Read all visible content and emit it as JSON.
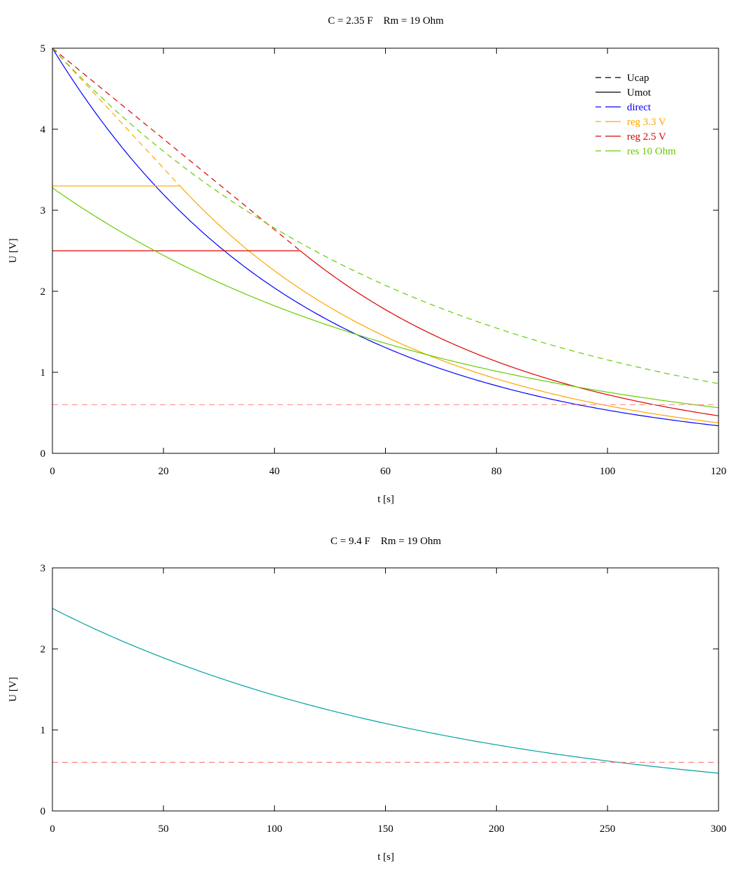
{
  "chart_data": [
    {
      "type": "line",
      "title": "C = 2.35 F    Rm = 19 Ohm",
      "xlabel": "t [s]",
      "ylabel": "U [V]",
      "xlim": [
        0,
        120
      ],
      "ylim": [
        0,
        5
      ],
      "xticks": [
        "0",
        "20",
        "40",
        "60",
        "80",
        "100",
        "120"
      ],
      "yticks": [
        "0",
        "1",
        "2",
        "3",
        "4",
        "5"
      ],
      "grid": false,
      "legend_position": "top-right",
      "legend": [
        {
          "label": "Ucap",
          "color": "#000000"
        },
        {
          "label": "Umot",
          "color": "#000000"
        },
        {
          "label": "direct",
          "color": "#0000ff"
        },
        {
          "label": "reg 3.3 V",
          "color": "#ffa500"
        },
        {
          "label": "reg 2.5 V",
          "color": "#dd0000"
        },
        {
          "label": "res 10 Ohm",
          "color": "#66cc00"
        }
      ],
      "series": [
        {
          "name": "direct Umot",
          "color": "#0000ff",
          "dash": false,
          "interp": "exp",
          "x": [
            0,
            10,
            20,
            30,
            40,
            50,
            60,
            70,
            80,
            90,
            100,
            110,
            120
          ],
          "y": [
            5.0,
            3.997,
            3.195,
            2.554,
            2.041,
            1.632,
            1.305,
            1.043,
            0.834,
            0.666,
            0.533,
            0.426,
            0.34
          ]
        },
        {
          "name": "reg 3.3 V Ucap",
          "color": "#ffa500",
          "dash": true,
          "interp": "linear",
          "x": [
            0,
            22.96
          ],
          "y": [
            5.0,
            3.3
          ]
        },
        {
          "name": "reg 3.3 V Umot",
          "color": "#ffa500",
          "dash": false,
          "interp": "exp",
          "x": [
            0,
            22.96,
            30,
            40,
            50,
            60,
            70,
            80,
            90,
            100,
            110,
            120
          ],
          "y": [
            3.3,
            3.3,
            2.819,
            2.253,
            1.801,
            1.44,
            1.151,
            0.92,
            0.735,
            0.588,
            0.47,
            0.376
          ]
        },
        {
          "name": "reg 2.5 V Ucap",
          "color": "#dd0000",
          "dash": true,
          "interp": "linear",
          "x": [
            0,
            44.65
          ],
          "y": [
            5.0,
            2.5
          ]
        },
        {
          "name": "reg 2.5 V Umot",
          "color": "#dd0000",
          "dash": false,
          "interp": "exp",
          "x": [
            0,
            44.65,
            50,
            60,
            70,
            80,
            90,
            100,
            110,
            120
          ],
          "y": [
            2.5,
            2.5,
            2.218,
            1.773,
            1.417,
            1.133,
            0.906,
            0.724,
            0.579,
            0.463
          ]
        },
        {
          "name": "res 10 Ohm Ucap",
          "color": "#66cc00",
          "dash": true,
          "interp": "exp",
          "x": [
            0,
            10,
            20,
            30,
            40,
            50,
            60,
            70,
            80,
            90,
            100,
            110,
            120
          ],
          "y": [
            5.0,
            4.318,
            3.728,
            3.219,
            2.78,
            2.401,
            2.073,
            1.79,
            1.546,
            1.335,
            1.153,
            0.995,
            0.86
          ]
        },
        {
          "name": "res 10 Ohm Umot",
          "color": "#66cc00",
          "dash": false,
          "interp": "exp",
          "x": [
            0,
            10,
            20,
            30,
            40,
            50,
            60,
            70,
            80,
            90,
            100,
            110,
            120
          ],
          "y": [
            3.276,
            2.829,
            2.443,
            2.109,
            1.821,
            1.573,
            1.358,
            1.173,
            1.013,
            0.875,
            0.755,
            0.652,
            0.563
          ]
        },
        {
          "name": "threshold",
          "color": "#ff9999",
          "dash": true,
          "interp": "linear",
          "x": [
            0,
            120
          ],
          "y": [
            0.6,
            0.6
          ]
        }
      ]
    },
    {
      "type": "line",
      "title": "C = 9.4 F    Rm = 19 Ohm",
      "xlabel": "t [s]",
      "ylabel": "U [V]",
      "xlim": [
        0,
        300
      ],
      "ylim": [
        0,
        3
      ],
      "xticks": [
        "0",
        "50",
        "100",
        "150",
        "200",
        "250",
        "300"
      ],
      "yticks": [
        "0",
        "1",
        "2",
        "3"
      ],
      "grid": false,
      "legend": [],
      "series": [
        {
          "name": "Umot",
          "color": "#00a0a0",
          "dash": false,
          "interp": "exp",
          "x": [
            0,
            25,
            50,
            75,
            100,
            125,
            150,
            175,
            200,
            225,
            250,
            275,
            300
          ],
          "y": [
            2.5,
            2.173,
            1.89,
            1.643,
            1.428,
            1.242,
            1.08,
            0.939,
            0.816,
            0.709,
            0.617,
            0.536,
            0.466
          ]
        },
        {
          "name": "threshold",
          "color": "#ff8080",
          "dash": true,
          "interp": "linear",
          "x": [
            0,
            300
          ],
          "y": [
            0.6,
            0.6
          ]
        }
      ]
    }
  ]
}
